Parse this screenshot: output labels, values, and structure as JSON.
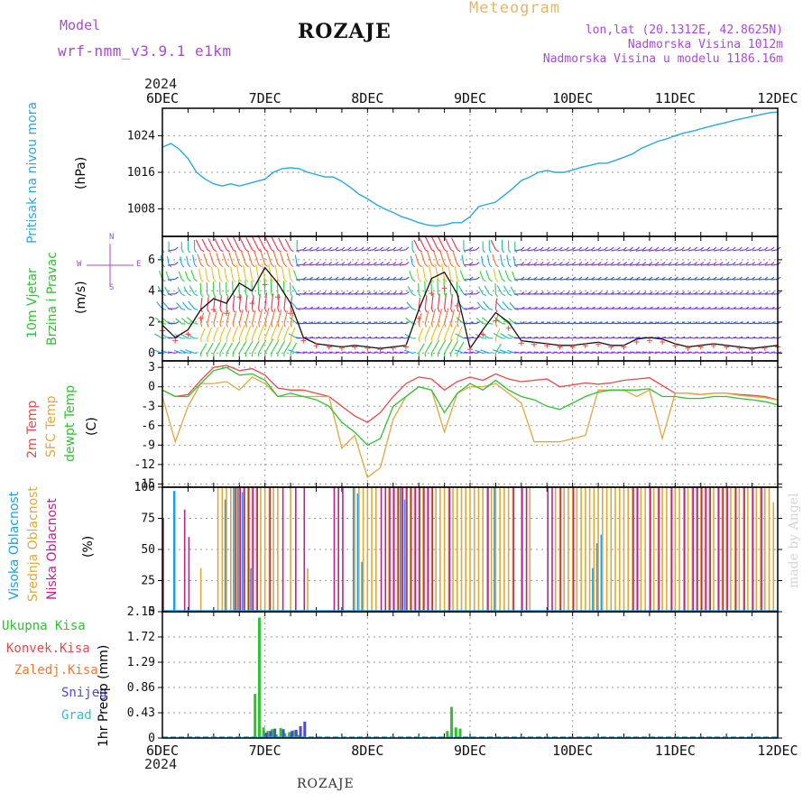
{
  "header": {
    "model_label": "Model",
    "model_name": "wrf-nmm_v3.9.1 e1km",
    "station": "ROZAJE",
    "meteogram": "Meteogram",
    "lonlat": "lon,lat (20.1312E, 42.8625N)",
    "elevation": "Nadmorska Visina 1012m",
    "model_elevation": "Nadmorska Visina u modelu 1186.16m",
    "year": "2024",
    "footer_station": "ROZAJE",
    "credit": "made by Angel"
  },
  "time_axis": {
    "days": [
      "6DEC",
      "7DEC",
      "8DEC",
      "9DEC",
      "10DEC",
      "11DEC",
      "12DEC"
    ]
  },
  "colors": {
    "pressure": "#2aa7e0",
    "temp2m": "#e84a4a",
    "sfc": "#e0a83c",
    "dewpt": "#2fc12f",
    "high_cloud": "#1aa0e6",
    "mid_cloud": "#e0a83c",
    "low_cloud": "#c0208a",
    "precip": "#2fc12f",
    "snow": "#4b4bd6",
    "grad": "#2bc3c3"
  },
  "panels": {
    "pressure": {
      "label": "Pritisak na nivou mora",
      "unit": "(hPa)",
      "ticks": [
        "1024",
        "1016",
        "1008"
      ]
    },
    "wind": {
      "label1": "10m Vjetar",
      "label2": "Brzina i Pravac",
      "unit": "(m/s)",
      "ticks": [
        "6",
        "4",
        "2",
        "0"
      ],
      "compass": {
        "n": "N",
        "w": "W",
        "e": "E",
        "s": "S"
      }
    },
    "temp": {
      "label1": "2m Temp",
      "label2": "SFC Temp",
      "label3": "dewpt Temp",
      "unit": "(C)",
      "ticks": [
        "3",
        "0",
        "-3",
        "-6",
        "-9",
        "-12",
        "-15"
      ]
    },
    "cloud": {
      "label1": "Visoka Oblacnost",
      "label2": "Srednja Oblacnost",
      "label3": "Niska Oblacnost",
      "unit": "(%)",
      "ticks": [
        "100",
        "75",
        "50",
        "25",
        "0"
      ]
    },
    "precip": {
      "unit": "1hr Precip (mm)",
      "ticks": [
        "2.15",
        "1.72",
        "1.29",
        "0.86",
        "0.43",
        "0"
      ],
      "legend": [
        "Ukupna Kisa",
        "Konvek.Kisa",
        "Zaledj.Kisa",
        "Snijeg",
        "Grad"
      ]
    }
  },
  "chart_data": [
    {
      "type": "line",
      "title": "Pritisak na nivou mora",
      "ylabel": "(hPa)",
      "ylim": [
        1002,
        1030
      ],
      "x_unit": "hours since 6DEC 00",
      "x": [
        0,
        2,
        4,
        6,
        8,
        10,
        12,
        14,
        16,
        18,
        20,
        22,
        24,
        26,
        28,
        30,
        32,
        34,
        36,
        38,
        40,
        42,
        44,
        46,
        48,
        50,
        52,
        54,
        56,
        58,
        60,
        62,
        64,
        66,
        68,
        70,
        72,
        74,
        76,
        78,
        80,
        82,
        84,
        86,
        88,
        90,
        92,
        94,
        96,
        98,
        100,
        102,
        104,
        106,
        108,
        110,
        112,
        114,
        116,
        118,
        120,
        122,
        124,
        126,
        128,
        130,
        132,
        134,
        136,
        138,
        140,
        142,
        144
      ],
      "values": [
        1021.5,
        1022.3,
        1021,
        1019,
        1016,
        1014.5,
        1013.5,
        1013,
        1013.5,
        1013,
        1013.5,
        1014,
        1014.5,
        1016,
        1016.8,
        1017,
        1016.8,
        1016,
        1015.5,
        1015,
        1015,
        1014,
        1012.7,
        1011.2,
        1010.2,
        1009,
        1008,
        1007.2,
        1006.3,
        1005.7,
        1005,
        1004.5,
        1004.3,
        1004.5,
        1005,
        1005,
        1006.3,
        1008.5,
        1009,
        1009.5,
        1011,
        1012.5,
        1014.2,
        1015,
        1016,
        1016.4,
        1016,
        1016,
        1016.5,
        1017.1,
        1017.5,
        1018,
        1018,
        1018.6,
        1019.3,
        1020,
        1021.2,
        1022,
        1022.8,
        1023.3,
        1024,
        1024.6,
        1025,
        1025.5,
        1026,
        1026.5,
        1026.9,
        1027.4,
        1027.8,
        1028.2,
        1028.6,
        1029,
        1029.2
      ]
    },
    {
      "type": "line",
      "title": "10m Vjetar - Brzina i Pravac",
      "ylabel": "(m/s)",
      "ylim": [
        -0.5,
        7.5
      ],
      "x_unit": "hours since 6DEC 00",
      "x": [
        0,
        3,
        6,
        9,
        12,
        15,
        18,
        21,
        24,
        27,
        30,
        33,
        36,
        39,
        42,
        45,
        48,
        51,
        54,
        57,
        60,
        63,
        66,
        69,
        72,
        75,
        78,
        81,
        84,
        87,
        90,
        93,
        96,
        99,
        102,
        105,
        108,
        111,
        114,
        117,
        120,
        123,
        126,
        129,
        132,
        135,
        138,
        141,
        144
      ],
      "values": [
        1.8,
        1.0,
        1.5,
        2.8,
        3.5,
        3.2,
        4.5,
        4.0,
        5.5,
        4.5,
        3.2,
        1.0,
        0.6,
        0.5,
        0.4,
        0.5,
        0.4,
        0.3,
        0.4,
        0.5,
        2.8,
        4.8,
        5.2,
        3.8,
        0.3,
        1.5,
        2.6,
        2.0,
        0.8,
        0.7,
        0.6,
        0.5,
        0.5,
        0.6,
        0.7,
        0.5,
        0.5,
        0.9,
        1.0,
        0.9,
        0.6,
        0.4,
        0.5,
        0.6,
        0.5,
        0.4,
        0.3,
        0.4,
        0.5
      ]
    },
    {
      "type": "line",
      "title": "2m Temp / SFC Temp / dewpt Temp",
      "ylabel": "(C)",
      "ylim": [
        -15.5,
        4
      ],
      "x_unit": "hours since 6DEC 00",
      "x": [
        0,
        3,
        6,
        9,
        12,
        15,
        18,
        21,
        24,
        27,
        30,
        33,
        36,
        39,
        42,
        45,
        48,
        51,
        54,
        57,
        60,
        63,
        66,
        69,
        72,
        75,
        78,
        81,
        84,
        87,
        90,
        93,
        96,
        99,
        102,
        105,
        108,
        111,
        114,
        117,
        120,
        123,
        126,
        129,
        132,
        135,
        138,
        141,
        144
      ],
      "series": [
        {
          "name": "2m Temp",
          "values": [
            -0.5,
            -1.5,
            -1.2,
            1.0,
            3.0,
            3.3,
            2.5,
            2.8,
            1.8,
            -0.2,
            -0.5,
            -0.5,
            -1.0,
            -1.5,
            -3.0,
            -4.5,
            -5.5,
            -4.0,
            -1.5,
            0.5,
            1.5,
            1.2,
            -0.5,
            0.8,
            1.5,
            1.0,
            2.0,
            1.2,
            0.8,
            1.0,
            1.2,
            0.0,
            0.3,
            0.6,
            0.4,
            0.6,
            1.0,
            1.2,
            1.4,
            0.2,
            -1.0,
            -1.0,
            -1.2,
            -1.0,
            -1.0,
            -1.2,
            -1.3,
            -1.5,
            -2.0
          ]
        },
        {
          "name": "SFC Temp",
          "values": [
            -1.5,
            -8.5,
            -3.0,
            0.5,
            0.5,
            0.8,
            -0.5,
            1.5,
            0.5,
            -1.5,
            -1.5,
            -1.5,
            -1.5,
            -1.5,
            -9.5,
            -7.5,
            -14.0,
            -12.5,
            -5.0,
            -1.5,
            0.0,
            -0.5,
            -7.0,
            -1.0,
            0.0,
            0.0,
            0.5,
            -1.0,
            -2.5,
            -8.5,
            -8.5,
            -8.5,
            -8.0,
            -7.5,
            -0.5,
            -0.5,
            -0.5,
            -1.5,
            -0.5,
            -8.0,
            -1.0,
            -1.0,
            -1.2,
            -1.0,
            -1.0,
            -1.3,
            -1.5,
            -1.7,
            -2.0
          ]
        },
        {
          "name": "dewpt Temp",
          "values": [
            -0.5,
            -1.5,
            -1.5,
            0.5,
            2.5,
            3.0,
            1.8,
            2.0,
            1.0,
            -1.5,
            -1.0,
            -1.5,
            -2.0,
            -3.0,
            -5.5,
            -7.0,
            -9.0,
            -8.0,
            -3.0,
            -1.5,
            0.0,
            -0.5,
            -4.0,
            -1.0,
            0.5,
            -0.5,
            1.0,
            -0.5,
            -1.5,
            -2.0,
            -3.0,
            -3.5,
            -2.5,
            -1.5,
            -0.8,
            -0.5,
            -0.5,
            -0.5,
            -0.3,
            -1.5,
            -1.5,
            -1.8,
            -1.8,
            -1.5,
            -1.5,
            -1.8,
            -2.0,
            -2.3,
            -2.8
          ]
        }
      ]
    },
    {
      "type": "bar",
      "title": "Oblacnost (Visoka / Srednja / Niska)",
      "ylabel": "(%)",
      "ylim": [
        0,
        100
      ],
      "x_unit": "hours since 6DEC 00",
      "series": [
        {
          "name": "Visoka Oblacnost",
          "x": [
            3,
            15,
            17,
            18,
            19,
            21,
            45,
            46,
            47,
            56,
            57,
            78,
            101,
            102,
            103
          ],
          "values": [
            97,
            90,
            100,
            100,
            96,
            35,
            100,
            95,
            40,
            100,
            90,
            100,
            35,
            55,
            62
          ]
        },
        {
          "name": "Srednja Oblacnost",
          "x": [
            9,
            13,
            14,
            15,
            16,
            17,
            18,
            19,
            20,
            21,
            22,
            23,
            24,
            25,
            26,
            27,
            30,
            34,
            45,
            46,
            47,
            48,
            49,
            50,
            53,
            54,
            55,
            56,
            57,
            58,
            59,
            60,
            61,
            62,
            63,
            64,
            65,
            66,
            67,
            68,
            69,
            70,
            71,
            72,
            73,
            74,
            75,
            76,
            77,
            78,
            79,
            80,
            81,
            82,
            84,
            86,
            92,
            93,
            94,
            95,
            96,
            97,
            98,
            99,
            100,
            101,
            102,
            103,
            104,
            105,
            106,
            107,
            108,
            109,
            110,
            111,
            112,
            113,
            114,
            115,
            116,
            117,
            118,
            119,
            120,
            121,
            122,
            123,
            124,
            125,
            126,
            127,
            128,
            129,
            130,
            131,
            132,
            133,
            134,
            135,
            136,
            137,
            138,
            139,
            140,
            141,
            142,
            143
          ],
          "values": [
            35,
            100,
            100,
            100,
            100,
            100,
            100,
            100,
            100,
            100,
            100,
            100,
            100,
            100,
            100,
            100,
            100,
            35,
            100,
            100,
            100,
            100,
            100,
            100,
            100,
            100,
            100,
            100,
            100,
            100,
            100,
            100,
            100,
            100,
            100,
            100,
            100,
            100,
            100,
            100,
            100,
            100,
            100,
            100,
            100,
            100,
            100,
            100,
            100,
            100,
            100,
            100,
            100,
            100,
            100,
            100,
            100,
            100,
            100,
            100,
            100,
            100,
            100,
            100,
            100,
            100,
            100,
            100,
            100,
            100,
            100,
            100,
            100,
            100,
            100,
            100,
            100,
            100,
            100,
            100,
            100,
            100,
            100,
            100,
            100,
            100,
            100,
            100,
            100,
            100,
            100,
            100,
            100,
            100,
            100,
            100,
            100,
            100,
            100,
            100,
            100,
            100,
            100,
            100,
            100,
            100,
            100,
            88
          ]
        },
        {
          "name": "Niska Oblacnost",
          "x": [
            0,
            5,
            6,
            17,
            18,
            19,
            20,
            21,
            22,
            25,
            28,
            31,
            33,
            40,
            41,
            42,
            51,
            52,
            53,
            54,
            55,
            56,
            57,
            58,
            59,
            60,
            61,
            62,
            63,
            67,
            76,
            82,
            84,
            85,
            90,
            91,
            93,
            96,
            110,
            111,
            114,
            116,
            119,
            122,
            124,
            125,
            126,
            127,
            128,
            130,
            131,
            132,
            134,
            136,
            138,
            140
          ],
          "values": [
            75,
            82,
            60,
            100,
            100,
            100,
            100,
            100,
            100,
            100,
            100,
            100,
            100,
            100,
            100,
            100,
            100,
            100,
            100,
            100,
            100,
            100,
            100,
            100,
            100,
            100,
            100,
            100,
            100,
            100,
            100,
            100,
            100,
            100,
            100,
            100,
            100,
            100,
            100,
            100,
            100,
            100,
            100,
            100,
            100,
            100,
            100,
            100,
            100,
            100,
            100,
            100,
            100,
            100,
            100,
            100
          ]
        }
      ]
    },
    {
      "type": "bar",
      "title": "1hr Precip",
      "ylabel": "(mm)",
      "ylim": [
        0,
        2.15
      ],
      "x_unit": "hours since 6DEC 00",
      "series": [
        {
          "name": "Ukupna Kisa",
          "x": [
            21,
            22,
            23,
            24,
            25,
            26,
            27,
            28,
            29,
            30,
            31,
            32,
            67,
            68,
            69,
            70,
            139,
            140
          ],
          "values": [
            0.02,
            0.75,
            2.05,
            0.18,
            0.12,
            0.15,
            0.06,
            0.17,
            0.08,
            0.1,
            0.13,
            0.05,
            0.12,
            0.53,
            0.18,
            0.16,
            0.02,
            0.02
          ]
        },
        {
          "name": "Snijeg",
          "x": [
            24,
            25,
            26,
            28,
            30,
            31,
            32,
            33
          ],
          "values": [
            0.09,
            0.12,
            0.16,
            0.15,
            0.12,
            0.14,
            0.2,
            0.28
          ]
        }
      ]
    }
  ]
}
